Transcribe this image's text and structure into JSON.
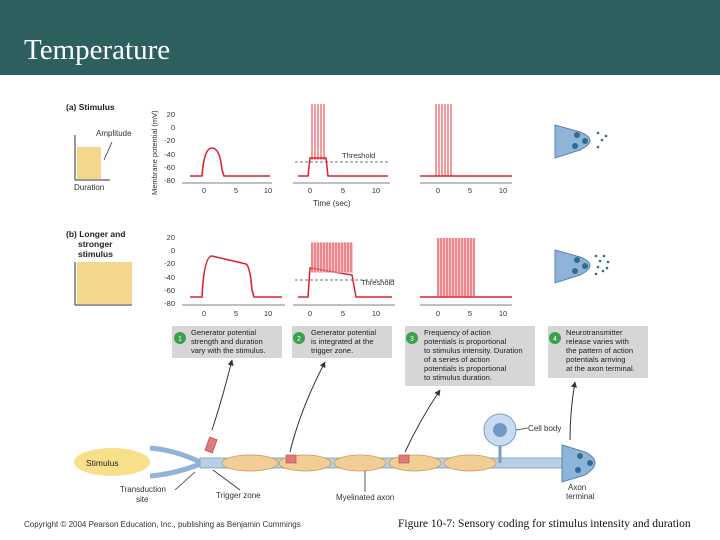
{
  "slide": {
    "title": "Temperature",
    "copyright": "Copyright © 2004 Pearson Education, Inc., publishing as Benjamin Cummings",
    "caption": "Figure 10-7: Sensory coding for stimulus intensity and duration"
  },
  "panel_a": {
    "label": "(a) Stimulus",
    "amplitude": "Amplitude",
    "duration": "Duration"
  },
  "panel_b": {
    "label_line1": "(b) Longer and",
    "label_line2": "stronger",
    "label_line3": "stimulus"
  },
  "axes": {
    "ylabel": "Membrane potential (mV)",
    "xlabel": "Time (sec)",
    "yticks": [
      "20",
      "0",
      "-20",
      "-40",
      "-60",
      "-80"
    ],
    "xticks": [
      "0",
      "5",
      "10"
    ],
    "threshold": "Threshold"
  },
  "steps": [
    {
      "num": "1",
      "lines": [
        "Generator potential",
        "strength and duration",
        "vary with the stimulus."
      ]
    },
    {
      "num": "2",
      "lines": [
        "Generator potential",
        "is integrated at the",
        "trigger zone."
      ]
    },
    {
      "num": "3",
      "lines": [
        "Frequency of action",
        "potentials is proportional",
        "to stimulus intensity. Duration",
        "of a series of action",
        "potentials is proportional",
        "to stimulus duration."
      ]
    },
    {
      "num": "4",
      "lines": [
        "Neurotransmitter",
        "release varies with",
        "the pattern of action",
        "potentials arriving",
        "at the axon terminal."
      ]
    }
  ],
  "neuron": {
    "stimulus": "Stimulus",
    "transduction_line1": "Transduction",
    "transduction_line2": "site",
    "trigger_zone": "Trigger zone",
    "myelinated_axon": "Myelinated axon",
    "cell_body": "Cell body",
    "axon_terminal_line1": "Axon",
    "axon_terminal_line2": "terminal"
  }
}
